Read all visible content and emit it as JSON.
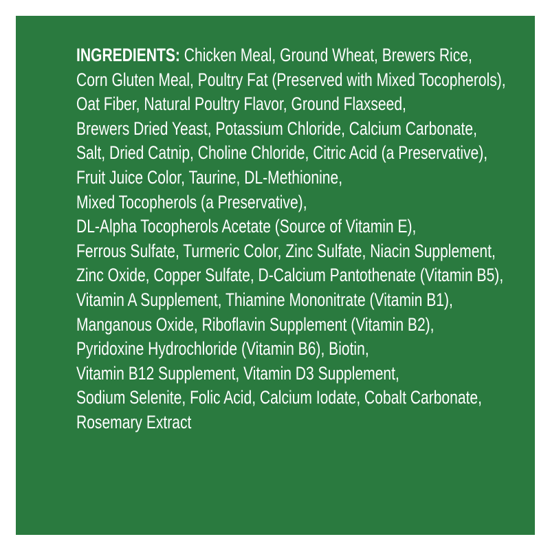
{
  "panel_color": "#2a7a3f",
  "heading": "INGREDIENTS:",
  "lines": [
    "Chicken Meal, Ground Wheat, Brewers Rice,",
    "Corn Gluten Meal, Poultry Fat (Preserved with Mixed Tocopherols),",
    "Oat Fiber, Natural Poultry Flavor, Ground Flaxseed,",
    "Brewers Dried Yeast,  Potassium Chloride, Calcium Carbonate,",
    "Salt, Dried  Catnip, Choline Chloride, Citric Acid (a Preservative),",
    "Fruit Juice Color, Taurine, DL-Methionine,",
    "Mixed Tocopherols (a Preservative),",
    "DL-Alpha Tocopherols Acetate (Source of Vitamin E),",
    "Ferrous Sulfate, Turmeric Color, Zinc Sulfate,  Niacin Supplement,",
    "Zinc Oxide,  Copper Sulfate, D-Calcium Pantothenate (Vitamin B5),",
    "Vitamin A Supplement, Thiamine Mononitrate (Vitamin B1),",
    "Manganous  Oxide, Riboflavin Supplement (Vitamin B2),",
    "Pyridoxine Hydrochloride (Vitamin B6), Biotin,",
    "Vitamin B12 Supplement,  Vitamin D3  Supplement,",
    "Sodium Selenite, Folic Acid, Calcium Iodate, Cobalt Carbonate,",
    "Rosemary Extract"
  ]
}
